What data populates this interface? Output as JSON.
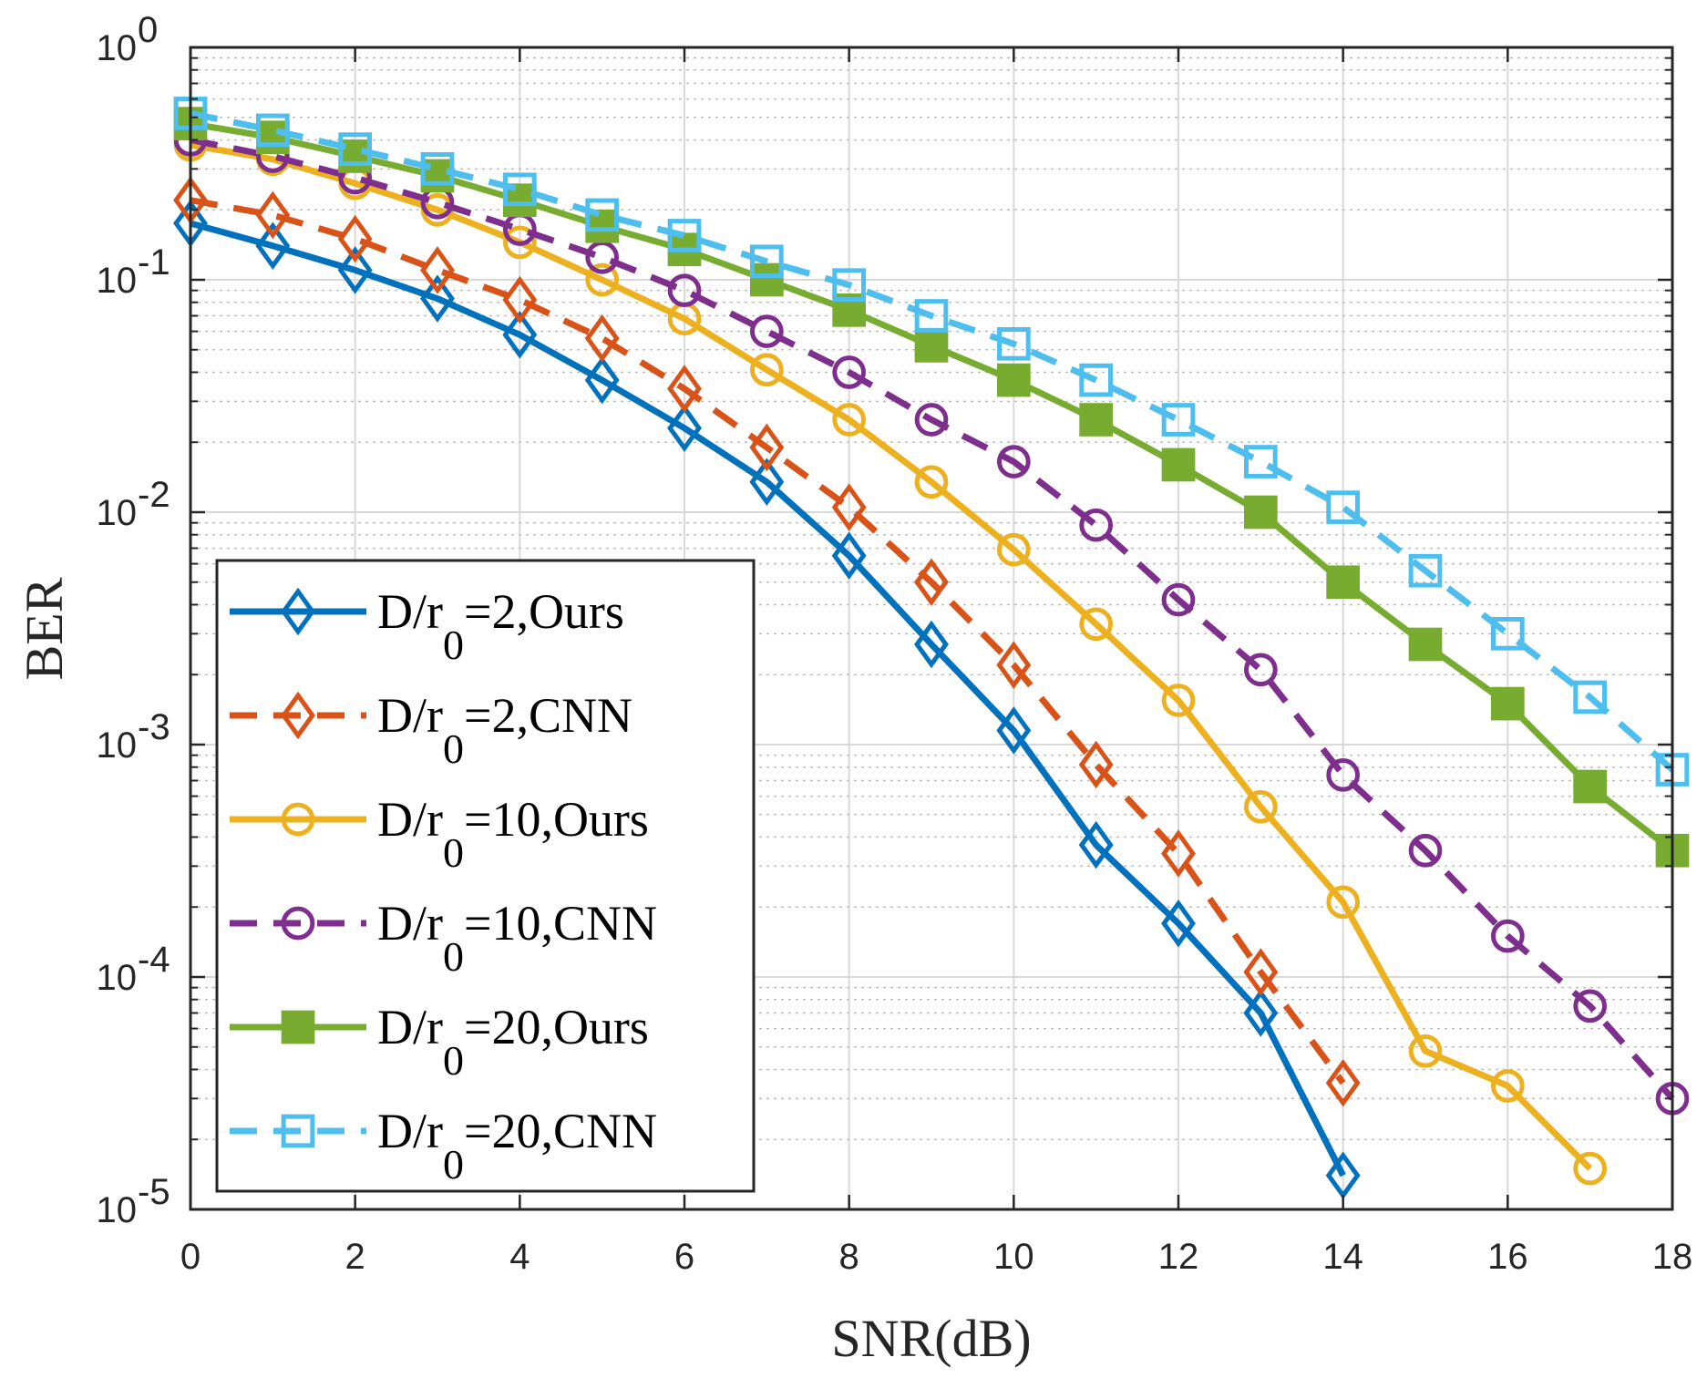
{
  "chart_data": {
    "type": "line",
    "xlabel": "SNR(dB)",
    "ylabel": "BER",
    "xlim": [
      0,
      18
    ],
    "ylim": [
      1e-05,
      1
    ],
    "yscale": "log",
    "grid": true,
    "legend_position": "lower-left",
    "x_ticks": [
      "0",
      "2",
      "4",
      "6",
      "8",
      "10",
      "12",
      "14",
      "16",
      "18"
    ],
    "y_ticks": [
      {
        "base": "10",
        "exp": "0"
      },
      {
        "base": "10",
        "exp": "-1"
      },
      {
        "base": "10",
        "exp": "-2"
      },
      {
        "base": "10",
        "exp": "-3"
      },
      {
        "base": "10",
        "exp": "-4"
      },
      {
        "base": "10",
        "exp": "-5"
      }
    ],
    "series": [
      {
        "name": "D/r0=2,Ours",
        "legend": {
          "pre": "D/r",
          "sub": "0",
          "post": "=2,Ours"
        },
        "color": "#0072BD",
        "dash": "solid",
        "marker": "diamond",
        "filled": false,
        "x": [
          0,
          1,
          2,
          3,
          4,
          5,
          6,
          7,
          8,
          9,
          10,
          11,
          12,
          13,
          14
        ],
        "y": [
          0.175,
          0.14,
          0.11,
          0.083,
          0.058,
          0.037,
          0.023,
          0.0135,
          0.0065,
          0.0027,
          0.00115,
          0.00037,
          0.00017,
          7e-05,
          1.4e-05
        ]
      },
      {
        "name": "D/r0=2,CNN",
        "legend": {
          "pre": "D/r",
          "sub": "0",
          "post": "=2,CNN"
        },
        "color": "#D95319",
        "dash": "dashed",
        "marker": "diamond",
        "filled": false,
        "x": [
          0,
          1,
          2,
          3,
          4,
          5,
          6,
          7,
          8,
          9,
          10,
          11,
          12,
          13,
          14
        ],
        "y": [
          0.22,
          0.19,
          0.15,
          0.11,
          0.082,
          0.056,
          0.034,
          0.019,
          0.0105,
          0.005,
          0.0022,
          0.00082,
          0.00034,
          0.000105,
          3.5e-05
        ]
      },
      {
        "name": "D/r0=10,Ours",
        "legend": {
          "pre": "D/r",
          "sub": "0",
          "post": "=10,Ours"
        },
        "color": "#EDB120",
        "dash": "solid",
        "marker": "circle",
        "filled": false,
        "x": [
          0,
          1,
          2,
          3,
          4,
          5,
          6,
          7,
          8,
          9,
          10,
          11,
          12,
          13,
          14,
          15,
          16,
          17
        ],
        "y": [
          0.38,
          0.33,
          0.26,
          0.2,
          0.145,
          0.1,
          0.068,
          0.041,
          0.025,
          0.0135,
          0.0069,
          0.0033,
          0.00155,
          0.00054,
          0.00021,
          4.8e-05,
          3.4e-05,
          1.5e-05
        ]
      },
      {
        "name": "D/r0=10,CNN",
        "legend": {
          "pre": "D/r",
          "sub": "0",
          "post": "=10,CNN"
        },
        "color": "#7E2F8E",
        "dash": "dashed",
        "marker": "circle",
        "filled": false,
        "x": [
          0,
          1,
          2,
          3,
          4,
          5,
          6,
          7,
          8,
          9,
          10,
          11,
          12,
          13,
          14,
          15,
          16,
          17,
          18
        ],
        "y": [
          0.4,
          0.34,
          0.275,
          0.215,
          0.165,
          0.125,
          0.09,
          0.06,
          0.04,
          0.025,
          0.0165,
          0.0088,
          0.0042,
          0.0021,
          0.00074,
          0.00035,
          0.00015,
          7.5e-05,
          3e-05
        ]
      },
      {
        "name": "D/r0=20,Ours",
        "legend": {
          "pre": "D/r",
          "sub": "0",
          "post": "=20,Ours"
        },
        "color": "#77AC30",
        "dash": "solid",
        "marker": "square",
        "filled": true,
        "x": [
          0,
          1,
          2,
          3,
          4,
          5,
          6,
          7,
          8,
          9,
          10,
          11,
          12,
          13,
          14,
          15,
          16,
          17,
          18
        ],
        "y": [
          0.47,
          0.41,
          0.34,
          0.28,
          0.22,
          0.17,
          0.135,
          0.1,
          0.074,
          0.052,
          0.037,
          0.025,
          0.016,
          0.01,
          0.005,
          0.0027,
          0.0015,
          0.00066,
          0.00035
        ]
      },
      {
        "name": "D/r0=20,CNN",
        "legend": {
          "pre": "D/r",
          "sub": "0",
          "post": "=20,CNN"
        },
        "color": "#4DBEEE",
        "dash": "dashed",
        "marker": "square",
        "filled": false,
        "x": [
          0,
          1,
          2,
          3,
          4,
          5,
          6,
          7,
          8,
          9,
          10,
          11,
          12,
          13,
          14,
          15,
          16,
          17,
          18
        ],
        "y": [
          0.52,
          0.44,
          0.365,
          0.3,
          0.245,
          0.19,
          0.155,
          0.12,
          0.095,
          0.07,
          0.053,
          0.037,
          0.025,
          0.0165,
          0.0105,
          0.0056,
          0.003,
          0.0016,
          0.00078
        ]
      }
    ]
  }
}
